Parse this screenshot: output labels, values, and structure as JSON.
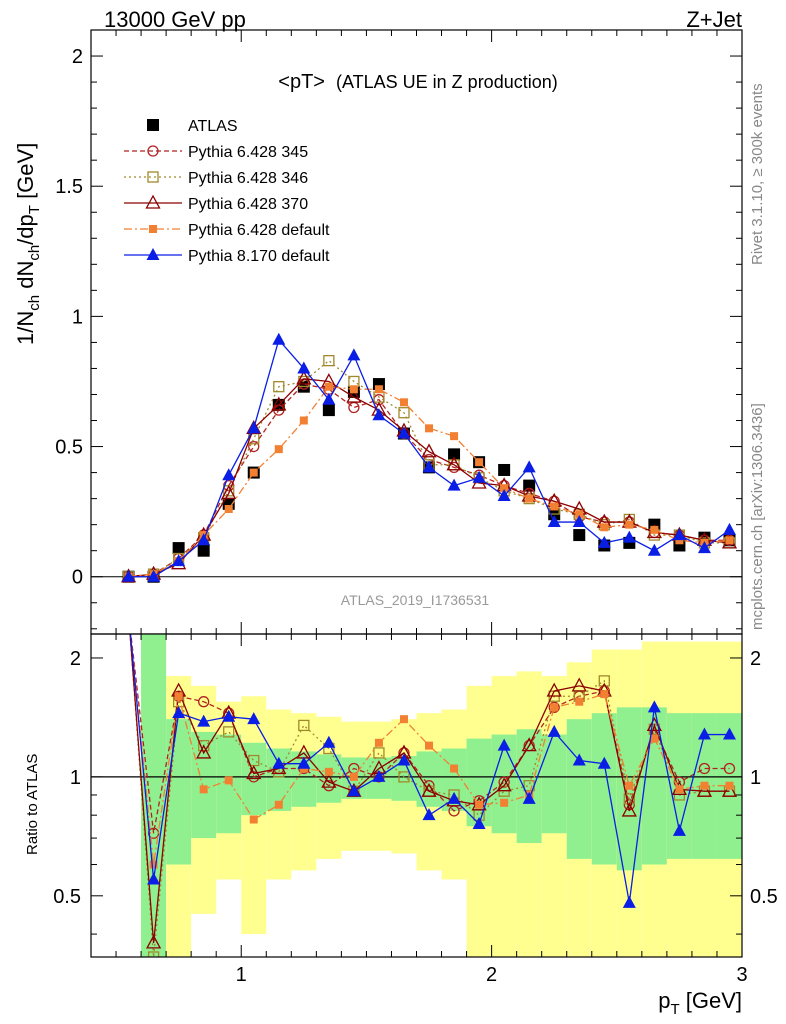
{
  "header": {
    "left": "13000 GeV pp",
    "right": "Z+Jet"
  },
  "side_labels": {
    "rivet": "Rivet 3.1.10, ≥ 300k events",
    "source": "mcplots.cern.ch [arXiv:1306.3436]"
  },
  "analysis_id": "ATLAS_2019_I1736531",
  "colors": {
    "atlas": "#000000",
    "p345": "#b22222",
    "p346": "#a0892c",
    "p370": "#8b0000",
    "p6def": "#f28033",
    "p8def": "#0a1ee6",
    "band_inner": "#90f090",
    "band_outer": "#ffff90"
  },
  "chart_data": [
    {
      "type": "scatter",
      "title": "<pT> (ATLAS UE in Z production)",
      "title_main": "<pT>",
      "title_sub": "(ATLAS UE in Z production)",
      "ylabel": "1/N_ch dN_ch/dp_T [GeV]",
      "ylabel_parts": [
        "1/N",
        "ch",
        " dN",
        "ch",
        "/dp",
        "T",
        " [GeV]"
      ],
      "xlim": [
        0.4,
        3.0
      ],
      "ylim": [
        -0.22,
        2.1
      ],
      "yticks": [
        "0",
        "0.5",
        "1",
        "1.5",
        "2"
      ],
      "legend_position": "top-left",
      "x": [
        0.55,
        0.65,
        0.75,
        0.85,
        0.95,
        1.05,
        1.15,
        1.25,
        1.35,
        1.45,
        1.55,
        1.65,
        1.75,
        1.85,
        1.95,
        2.05,
        2.15,
        2.25,
        2.35,
        2.45,
        2.55,
        2.65,
        2.75,
        2.85,
        2.95
      ],
      "series": [
        {
          "name": "ATLAS",
          "key": "atlas",
          "values": [
            0.0,
            0.0,
            0.11,
            0.1,
            0.28,
            0.4,
            0.66,
            0.73,
            0.64,
            0.71,
            0.74,
            0.55,
            0.42,
            0.47,
            0.44,
            0.41,
            0.35,
            0.24,
            0.16,
            0.12,
            0.13,
            0.2,
            0.12,
            0.15,
            0.14
          ]
        },
        {
          "name": "Pythia 6.428 345",
          "key": "p345",
          "values": [
            0.0,
            0.01,
            0.07,
            0.16,
            0.35,
            0.5,
            0.64,
            0.74,
            0.72,
            0.65,
            0.68,
            0.55,
            0.45,
            0.42,
            0.39,
            0.35,
            0.32,
            0.29,
            0.23,
            0.21,
            0.21,
            0.17,
            0.16,
            0.14,
            0.14
          ]
        },
        {
          "name": "Pythia 6.428 346",
          "key": "p346",
          "values": [
            0.0,
            0.01,
            0.07,
            0.15,
            0.33,
            0.53,
            0.73,
            0.75,
            0.83,
            0.75,
            0.69,
            0.63,
            0.43,
            0.43,
            0.38,
            0.33,
            0.3,
            0.26,
            0.24,
            0.2,
            0.22,
            0.16,
            0.16,
            0.13,
            0.13
          ]
        },
        {
          "name": "Pythia 6.428 370",
          "key": "p370",
          "values": [
            0.0,
            0.01,
            0.05,
            0.16,
            0.32,
            0.57,
            0.66,
            0.76,
            0.75,
            0.69,
            0.64,
            0.56,
            0.48,
            0.43,
            0.36,
            0.35,
            0.31,
            0.29,
            0.26,
            0.21,
            0.21,
            0.17,
            0.16,
            0.14,
            0.13
          ]
        },
        {
          "name": "Pythia 6.428 default",
          "key": "p6def",
          "values": [
            0.0,
            0.01,
            0.06,
            0.16,
            0.26,
            0.4,
            0.49,
            0.6,
            0.73,
            0.72,
            0.72,
            0.67,
            0.57,
            0.54,
            0.44,
            0.34,
            0.3,
            0.27,
            0.24,
            0.19,
            0.2,
            0.18,
            0.14,
            0.13,
            0.14
          ]
        },
        {
          "name": "Pythia 8.170 default",
          "key": "p8def",
          "values": [
            0.0,
            0.0,
            0.06,
            0.14,
            0.39,
            0.57,
            0.91,
            0.8,
            0.68,
            0.85,
            0.62,
            0.55,
            0.42,
            0.35,
            0.38,
            0.31,
            0.42,
            0.21,
            0.21,
            0.13,
            0.15,
            0.1,
            0.16,
            0.11,
            0.18
          ]
        }
      ]
    },
    {
      "type": "scatter",
      "ylabel": "Ratio to ATLAS",
      "xlabel": "p_T [GeV]",
      "xlabel_parts": [
        "p",
        "T",
        " [GeV]"
      ],
      "xlim": [
        0.4,
        3.0
      ],
      "ylim": [
        0.35,
        2.3
      ],
      "xticks": [
        "1",
        "2",
        "3"
      ],
      "yticks": [
        "0.5",
        "1",
        "2"
      ],
      "x": [
        0.65,
        0.75,
        0.85,
        0.95,
        1.05,
        1.15,
        1.25,
        1.35,
        1.45,
        1.55,
        1.65,
        1.75,
        1.85,
        1.95,
        2.05,
        2.15,
        2.25,
        2.35,
        2.45,
        2.55,
        2.65,
        2.75,
        2.85,
        2.95
      ],
      "bands": {
        "x_edges": [
          0.6,
          0.7,
          0.8,
          0.9,
          1.0,
          1.1,
          1.2,
          1.3,
          1.4,
          1.5,
          1.6,
          1.7,
          1.8,
          1.9,
          2.0,
          2.1,
          2.2,
          2.3,
          2.4,
          2.5,
          2.6,
          2.7,
          2.8,
          2.9,
          3.0
        ],
        "inner_lo": [
          0.35,
          0.6,
          0.7,
          0.72,
          0.8,
          0.82,
          0.84,
          0.86,
          0.88,
          0.88,
          0.87,
          0.84,
          0.82,
          0.75,
          0.72,
          0.68,
          0.72,
          0.62,
          0.6,
          0.58,
          0.6,
          0.62,
          0.62,
          0.62,
          0.6
        ],
        "inner_hi": [
          2.3,
          1.4,
          1.3,
          1.28,
          1.22,
          1.18,
          1.16,
          1.14,
          1.12,
          1.12,
          1.13,
          1.16,
          1.18,
          1.25,
          1.28,
          1.32,
          1.28,
          1.4,
          1.45,
          1.5,
          1.5,
          1.45,
          1.45,
          1.45,
          1.45
        ],
        "outer_lo": [
          0.35,
          0.35,
          0.45,
          0.55,
          0.4,
          0.55,
          0.58,
          0.62,
          0.65,
          0.65,
          0.64,
          0.58,
          0.55,
          0.35,
          0.35,
          0.35,
          0.35,
          0.35,
          0.35,
          0.35,
          0.35,
          0.35,
          0.35,
          0.35,
          0.35
        ],
        "outer_hi": [
          2.3,
          1.8,
          1.7,
          1.55,
          1.6,
          1.48,
          1.45,
          1.42,
          1.38,
          1.38,
          1.4,
          1.45,
          1.48,
          1.7,
          1.8,
          1.85,
          1.8,
          1.95,
          2.1,
          2.1,
          2.2,
          2.2,
          2.2,
          2.2,
          2.2
        ]
      },
      "series": [
        {
          "name": "Pythia 6.428 345",
          "key": "p345",
          "values": [
            0.72,
            1.6,
            1.55,
            1.45,
            1.0,
            1.05,
            1.05,
            0.95,
            1.05,
            1.0,
            1.15,
            0.95,
            0.82,
            0.87,
            0.97,
            1.2,
            1.5,
            1.6,
            1.65,
            0.85,
            1.32,
            0.97,
            1.05,
            1.05
          ]
        },
        {
          "name": "Pythia 6.428 346",
          "key": "p346",
          "values": [
            0.35,
            1.55,
            1.2,
            1.3,
            1.1,
            1.03,
            1.35,
            1.18,
            0.92,
            1.15,
            1.0,
            0.92,
            0.9,
            0.8,
            0.92,
            0.95,
            1.6,
            1.6,
            1.75,
            0.88,
            1.32,
            0.9,
            0.92,
            0.92
          ]
        },
        {
          "name": "Pythia 6.428 370",
          "key": "p370",
          "values": [
            0.38,
            1.65,
            1.15,
            1.45,
            1.02,
            1.05,
            1.15,
            0.97,
            0.92,
            1.05,
            1.15,
            0.92,
            0.87,
            0.85,
            0.95,
            1.2,
            1.65,
            1.7,
            1.65,
            0.82,
            1.35,
            0.93,
            0.92,
            0.92
          ]
        },
        {
          "name": "Pythia 6.428 default",
          "key": "p6def",
          "values": [
            0.6,
            1.6,
            0.93,
            0.98,
            0.78,
            0.85,
            1.05,
            1.03,
            1.0,
            1.22,
            1.4,
            1.2,
            1.05,
            0.85,
            0.86,
            0.9,
            1.5,
            1.55,
            1.62,
            0.95,
            1.25,
            0.93,
            0.95,
            0.95
          ]
        },
        {
          "name": "Pythia 8.170 default",
          "key": "p8def",
          "values": [
            0.55,
            1.45,
            1.38,
            1.42,
            1.4,
            1.08,
            1.08,
            1.22,
            0.92,
            1.0,
            1.1,
            0.8,
            0.88,
            0.76,
            1.2,
            0.88,
            1.3,
            1.1,
            1.08,
            0.48,
            1.5,
            0.73,
            1.28,
            1.28
          ]
        }
      ]
    }
  ]
}
